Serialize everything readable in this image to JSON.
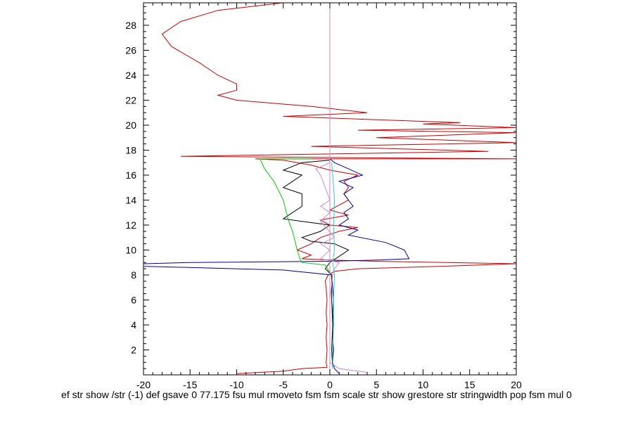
{
  "chart_data": {
    "type": "line",
    "title": "",
    "xlabel": "",
    "ylabel": "",
    "xlim": [
      -20,
      20
    ],
    "ylim": [
      0,
      29.8
    ],
    "xticks": [
      -20,
      -15,
      -10,
      -5,
      0,
      5,
      10,
      15,
      20
    ],
    "yticks": [
      2,
      4,
      6,
      8,
      10,
      12,
      14,
      16,
      18,
      20,
      22,
      24,
      26,
      28
    ],
    "grid": false,
    "legend": "none",
    "series": [
      {
        "color": "#cc0000",
        "points": [
          [
            -10,
            0.1
          ],
          [
            -5,
            0.3
          ],
          [
            -3,
            0.5
          ],
          [
            -0.3,
            0.6
          ],
          [
            -0.4,
            1
          ],
          [
            -0.3,
            2
          ],
          [
            -0.4,
            3
          ],
          [
            -0.3,
            4
          ],
          [
            -0.4,
            5
          ],
          [
            -0.3,
            6
          ],
          [
            -0.4,
            7
          ],
          [
            -0.5,
            7.5
          ],
          [
            -0.2,
            8
          ],
          [
            0.5,
            8.3
          ],
          [
            3,
            8.5
          ],
          [
            12,
            8.7
          ],
          [
            20,
            8.9
          ],
          [
            5,
            9.1
          ],
          [
            0,
            9.2
          ],
          [
            -3,
            9.3
          ],
          [
            -2,
            9.6
          ],
          [
            -3.5,
            10
          ],
          [
            -2,
            10.5
          ],
          [
            -1,
            11
          ],
          [
            1,
            11.5
          ],
          [
            3,
            11.8
          ],
          [
            0,
            12
          ],
          [
            -1,
            12.4
          ],
          [
            2,
            12.8
          ],
          [
            0,
            13.2
          ],
          [
            1,
            13.6
          ],
          [
            2,
            14
          ],
          [
            1.5,
            14.5
          ],
          [
            2,
            15
          ],
          [
            1.5,
            15.5
          ],
          [
            3,
            16
          ],
          [
            0,
            16.4
          ],
          [
            -2,
            16.8
          ],
          [
            -5,
            17.2
          ],
          [
            -8,
            17.3
          ],
          [
            15,
            17.3
          ],
          [
            20,
            17.3
          ],
          [
            -16,
            17.5
          ],
          [
            17,
            17.9
          ],
          [
            -2,
            18.3
          ],
          [
            20,
            18.6
          ],
          [
            5,
            19
          ],
          [
            20,
            19.4
          ],
          [
            3,
            19.6
          ],
          [
            20,
            19.8
          ],
          [
            10,
            20.1
          ],
          [
            14,
            20.2
          ],
          [
            -5,
            20.7
          ],
          [
            4,
            21
          ],
          [
            -2,
            21.5
          ],
          [
            -10,
            22
          ],
          [
            -12,
            22.4
          ],
          [
            -10,
            22.8
          ],
          [
            -10,
            23.3
          ],
          [
            -12,
            24
          ],
          [
            -14,
            25
          ],
          [
            -17,
            26.3
          ],
          [
            -18,
            27.3
          ],
          [
            -16,
            28.3
          ],
          [
            -12,
            29.2
          ],
          [
            -5,
            29.8
          ]
        ]
      },
      {
        "color": "#000099",
        "points": [
          [
            1,
            0.1
          ],
          [
            0.5,
            0.5
          ],
          [
            0.3,
            1
          ],
          [
            0.4,
            2
          ],
          [
            0.3,
            3
          ],
          [
            0.4,
            4
          ],
          [
            0.3,
            5
          ],
          [
            0.4,
            6
          ],
          [
            0.3,
            7
          ],
          [
            0.2,
            8
          ],
          [
            -5,
            8.4
          ],
          [
            -20,
            8.7
          ],
          [
            -20,
            8.9
          ],
          [
            -15,
            9
          ],
          [
            0,
            9.1
          ],
          [
            5,
            9.2
          ],
          [
            8.5,
            9.3
          ],
          [
            8,
            10
          ],
          [
            6,
            10.6
          ],
          [
            2,
            11.2
          ],
          [
            3,
            11.6
          ],
          [
            1,
            12
          ],
          [
            2,
            12.5
          ],
          [
            1.5,
            13
          ],
          [
            2.5,
            13.5
          ],
          [
            2,
            14
          ],
          [
            1.5,
            14.5
          ],
          [
            2.5,
            15
          ],
          [
            1,
            15.5
          ],
          [
            3.5,
            16
          ],
          [
            2,
            16.5
          ],
          [
            0.5,
            17
          ],
          [
            0,
            17.3
          ]
        ]
      },
      {
        "color": "#000000",
        "points": [
          [
            0.3,
            0.5
          ],
          [
            0.2,
            2
          ],
          [
            0.3,
            4
          ],
          [
            0.2,
            6
          ],
          [
            0.2,
            8
          ],
          [
            -0.5,
            8.5
          ],
          [
            0,
            9
          ],
          [
            1,
            9.5
          ],
          [
            2,
            10
          ],
          [
            0.5,
            10.5
          ],
          [
            -2,
            10.7
          ],
          [
            -3,
            11
          ],
          [
            -1,
            11.5
          ],
          [
            0,
            12
          ],
          [
            -3,
            12.3
          ],
          [
            -5,
            12.5
          ],
          [
            -4,
            13
          ],
          [
            -3,
            13.5
          ],
          [
            -3,
            14.5
          ],
          [
            -5,
            15
          ],
          [
            -4,
            15.5
          ],
          [
            -3,
            16
          ],
          [
            -5,
            16.4
          ],
          [
            -3,
            17
          ],
          [
            0,
            17.2
          ]
        ]
      },
      {
        "color": "#00cc00",
        "points": [
          [
            0,
            8.2
          ],
          [
            -0.5,
            8.8
          ],
          [
            -3,
            9
          ],
          [
            -3.2,
            9.3
          ],
          [
            -3.5,
            10
          ],
          [
            -4,
            11.5
          ],
          [
            -4.5,
            12.5
          ],
          [
            -5,
            14
          ],
          [
            -6,
            15.5
          ],
          [
            -7,
            16.5
          ],
          [
            -7.5,
            17.3
          ],
          [
            -2,
            17.3
          ]
        ]
      },
      {
        "color": "#33cccc",
        "points": [
          [
            0.3,
            0.5
          ],
          [
            0.3,
            2
          ],
          [
            0.4,
            4
          ],
          [
            0.4,
            6
          ],
          [
            0.5,
            8
          ],
          [
            0.3,
            9
          ],
          [
            0.5,
            10
          ],
          [
            0.4,
            12
          ],
          [
            0.5,
            14
          ],
          [
            0.3,
            16
          ],
          [
            0.2,
            17
          ]
        ]
      },
      {
        "color": "#cc88cc",
        "points": [
          [
            0,
            0.2
          ],
          [
            0,
            29.8
          ]
        ]
      },
      {
        "color": "#cc88cc",
        "points": [
          [
            4,
            0.2
          ],
          [
            1,
            0.5
          ],
          [
            0,
            1
          ],
          [
            0,
            2
          ],
          [
            0,
            6
          ],
          [
            0.3,
            8
          ],
          [
            0.5,
            8.5
          ],
          [
            1,
            9
          ],
          [
            -1,
            9.3
          ],
          [
            0,
            10
          ],
          [
            -1,
            10.5
          ],
          [
            0.5,
            11
          ],
          [
            -1,
            12.3
          ],
          [
            0,
            13
          ],
          [
            -1,
            13.5
          ],
          [
            0,
            14
          ],
          [
            -1,
            16
          ],
          [
            -1.5,
            16.5
          ],
          [
            0,
            17
          ]
        ]
      }
    ]
  },
  "footer": {
    "text": "ef str show /str (-1) def gsave 0 77.175 fsu mul rmoveto fsm fsm scale str show grestore str stringwidth pop fsm mul 0"
  }
}
